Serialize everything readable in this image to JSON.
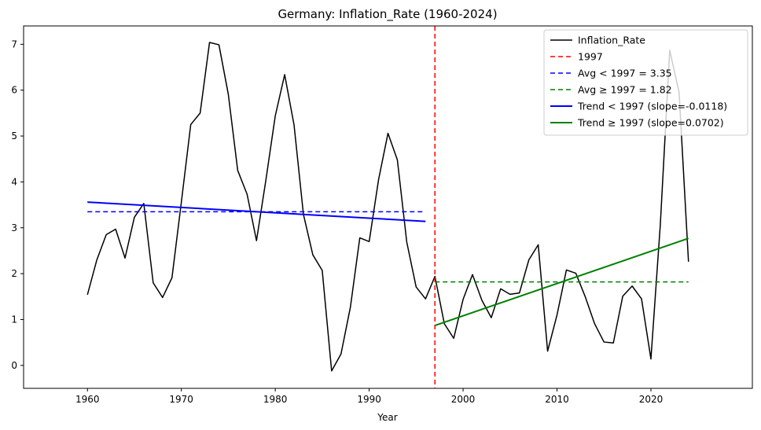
{
  "chart_data": {
    "type": "line",
    "title": "Germany: Inflation_Rate (1960-2024)",
    "xlabel": "Year",
    "ylabel": "",
    "xlim": [
      1953.2,
      2030.8
    ],
    "ylim": [
      -0.5,
      7.4
    ],
    "xticks": [
      1960,
      1970,
      1980,
      1990,
      2000,
      2010,
      2020
    ],
    "yticks": [
      0,
      1,
      2,
      3,
      4,
      5,
      6,
      7
    ],
    "legend_position": "top-right",
    "grid": false,
    "series": [
      {
        "name": "Inflation_Rate",
        "color": "#000000",
        "style": "solid",
        "x": [
          1960,
          1961,
          1962,
          1963,
          1964,
          1965,
          1966,
          1967,
          1968,
          1969,
          1970,
          1971,
          1972,
          1973,
          1974,
          1975,
          1976,
          1977,
          1978,
          1979,
          1980,
          1981,
          1982,
          1983,
          1984,
          1985,
          1986,
          1987,
          1988,
          1989,
          1990,
          1991,
          1992,
          1993,
          1994,
          1995,
          1996,
          1997,
          1998,
          1999,
          2000,
          2001,
          2002,
          2003,
          2004,
          2005,
          2006,
          2007,
          2008,
          2009,
          2010,
          2011,
          2012,
          2013,
          2014,
          2015,
          2016,
          2017,
          2018,
          2019,
          2020,
          2021,
          2022,
          2023,
          2024
        ],
        "values": [
          1.54,
          2.3,
          2.85,
          2.97,
          2.34,
          3.23,
          3.53,
          1.8,
          1.48,
          1.91,
          3.56,
          5.25,
          5.5,
          7.04,
          6.99,
          5.91,
          4.25,
          3.73,
          2.72,
          4.04,
          5.44,
          6.34,
          5.24,
          3.29,
          2.41,
          2.07,
          -0.12,
          0.25,
          1.27,
          2.78,
          2.7,
          4.05,
          5.06,
          4.48,
          2.69,
          1.71,
          1.45,
          1.94,
          0.91,
          0.59,
          1.44,
          1.98,
          1.42,
          1.04,
          1.67,
          1.55,
          1.58,
          2.3,
          2.63,
          0.31,
          1.1,
          2.08,
          2.01,
          1.5,
          0.91,
          0.51,
          0.49,
          1.51,
          1.73,
          1.45,
          0.14,
          3.07,
          6.87,
          5.95,
          2.26
        ]
      },
      {
        "name": "Avg < 1997 = 3.35",
        "color": "#0000ff",
        "style": "dashed",
        "x": [
          1960,
          1996
        ],
        "values": [
          3.35,
          3.35
        ]
      },
      {
        "name": "Avg ≥ 1997 = 1.82",
        "color": "#008000",
        "style": "dashed",
        "x": [
          1997,
          2024
        ],
        "values": [
          1.82,
          1.82
        ]
      },
      {
        "name": "Trend < 1997 (slope=-0.0118)",
        "color": "#0000ff",
        "style": "solid",
        "x": [
          1960,
          1996
        ],
        "values": [
          3.56,
          3.14
        ]
      },
      {
        "name": "Trend ≥ 1997 (slope=0.0702)",
        "color": "#008000",
        "style": "solid",
        "x": [
          1997,
          2024
        ],
        "values": [
          0.87,
          2.77
        ]
      }
    ],
    "vline": {
      "name": "1997",
      "x": 1997,
      "color": "#ff0000",
      "style": "dashed"
    },
    "legend": [
      {
        "label": "Inflation_Rate",
        "color": "#000000",
        "style": "solid"
      },
      {
        "label": "1997",
        "color": "#ff0000",
        "style": "dashed"
      },
      {
        "label": "Avg < 1997 = 3.35",
        "color": "#0000ff",
        "style": "dashed"
      },
      {
        "label": "Avg ≥ 1997 = 1.82",
        "color": "#008000",
        "style": "dashed"
      },
      {
        "label": "Trend < 1997 (slope=-0.0118)",
        "color": "#0000ff",
        "style": "solid-thick"
      },
      {
        "label": "Trend ≥ 1997 (slope=0.0702)",
        "color": "#008000",
        "style": "solid-thick"
      }
    ]
  }
}
